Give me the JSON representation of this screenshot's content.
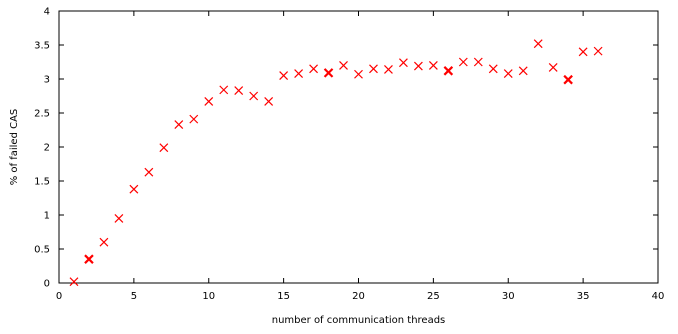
{
  "chart_data": {
    "type": "scatter",
    "xlabel": "number of communication threads",
    "ylabel": "% of failed CAS",
    "xlim": [
      0,
      40
    ],
    "ylim": [
      0,
      4
    ],
    "xticks": [
      "0",
      "5",
      "10",
      "15",
      "20",
      "25",
      "30",
      "35",
      "40"
    ],
    "yticks": [
      "0",
      "0.5",
      "1",
      "1.5",
      "2",
      "2.5",
      "3",
      "3.5",
      "4"
    ],
    "grid": false,
    "marker": "x",
    "color": "#ff0000",
    "series": [
      {
        "x": [
          1,
          2,
          3,
          4,
          5,
          6,
          7,
          8,
          9,
          10,
          11,
          12,
          13,
          14,
          15,
          16,
          17,
          18,
          19,
          20,
          21,
          22,
          23,
          24,
          25,
          26,
          27,
          28,
          29,
          30,
          31,
          32,
          33,
          34,
          35,
          36
        ],
        "y": [
          0.02,
          0.35,
          0.6,
          0.95,
          1.38,
          1.63,
          1.99,
          2.33,
          2.41,
          2.67,
          2.84,
          2.83,
          2.75,
          2.67,
          3.05,
          3.08,
          3.15,
          3.09,
          3.2,
          3.07,
          3.15,
          3.14,
          3.24,
          3.19,
          3.2,
          3.12,
          3.25,
          3.25,
          3.15,
          3.08,
          3.12,
          3.52,
          3.17,
          2.99,
          3.4,
          3.41
        ],
        "emphasized_x": [
          2,
          18,
          26,
          34
        ]
      }
    ]
  }
}
